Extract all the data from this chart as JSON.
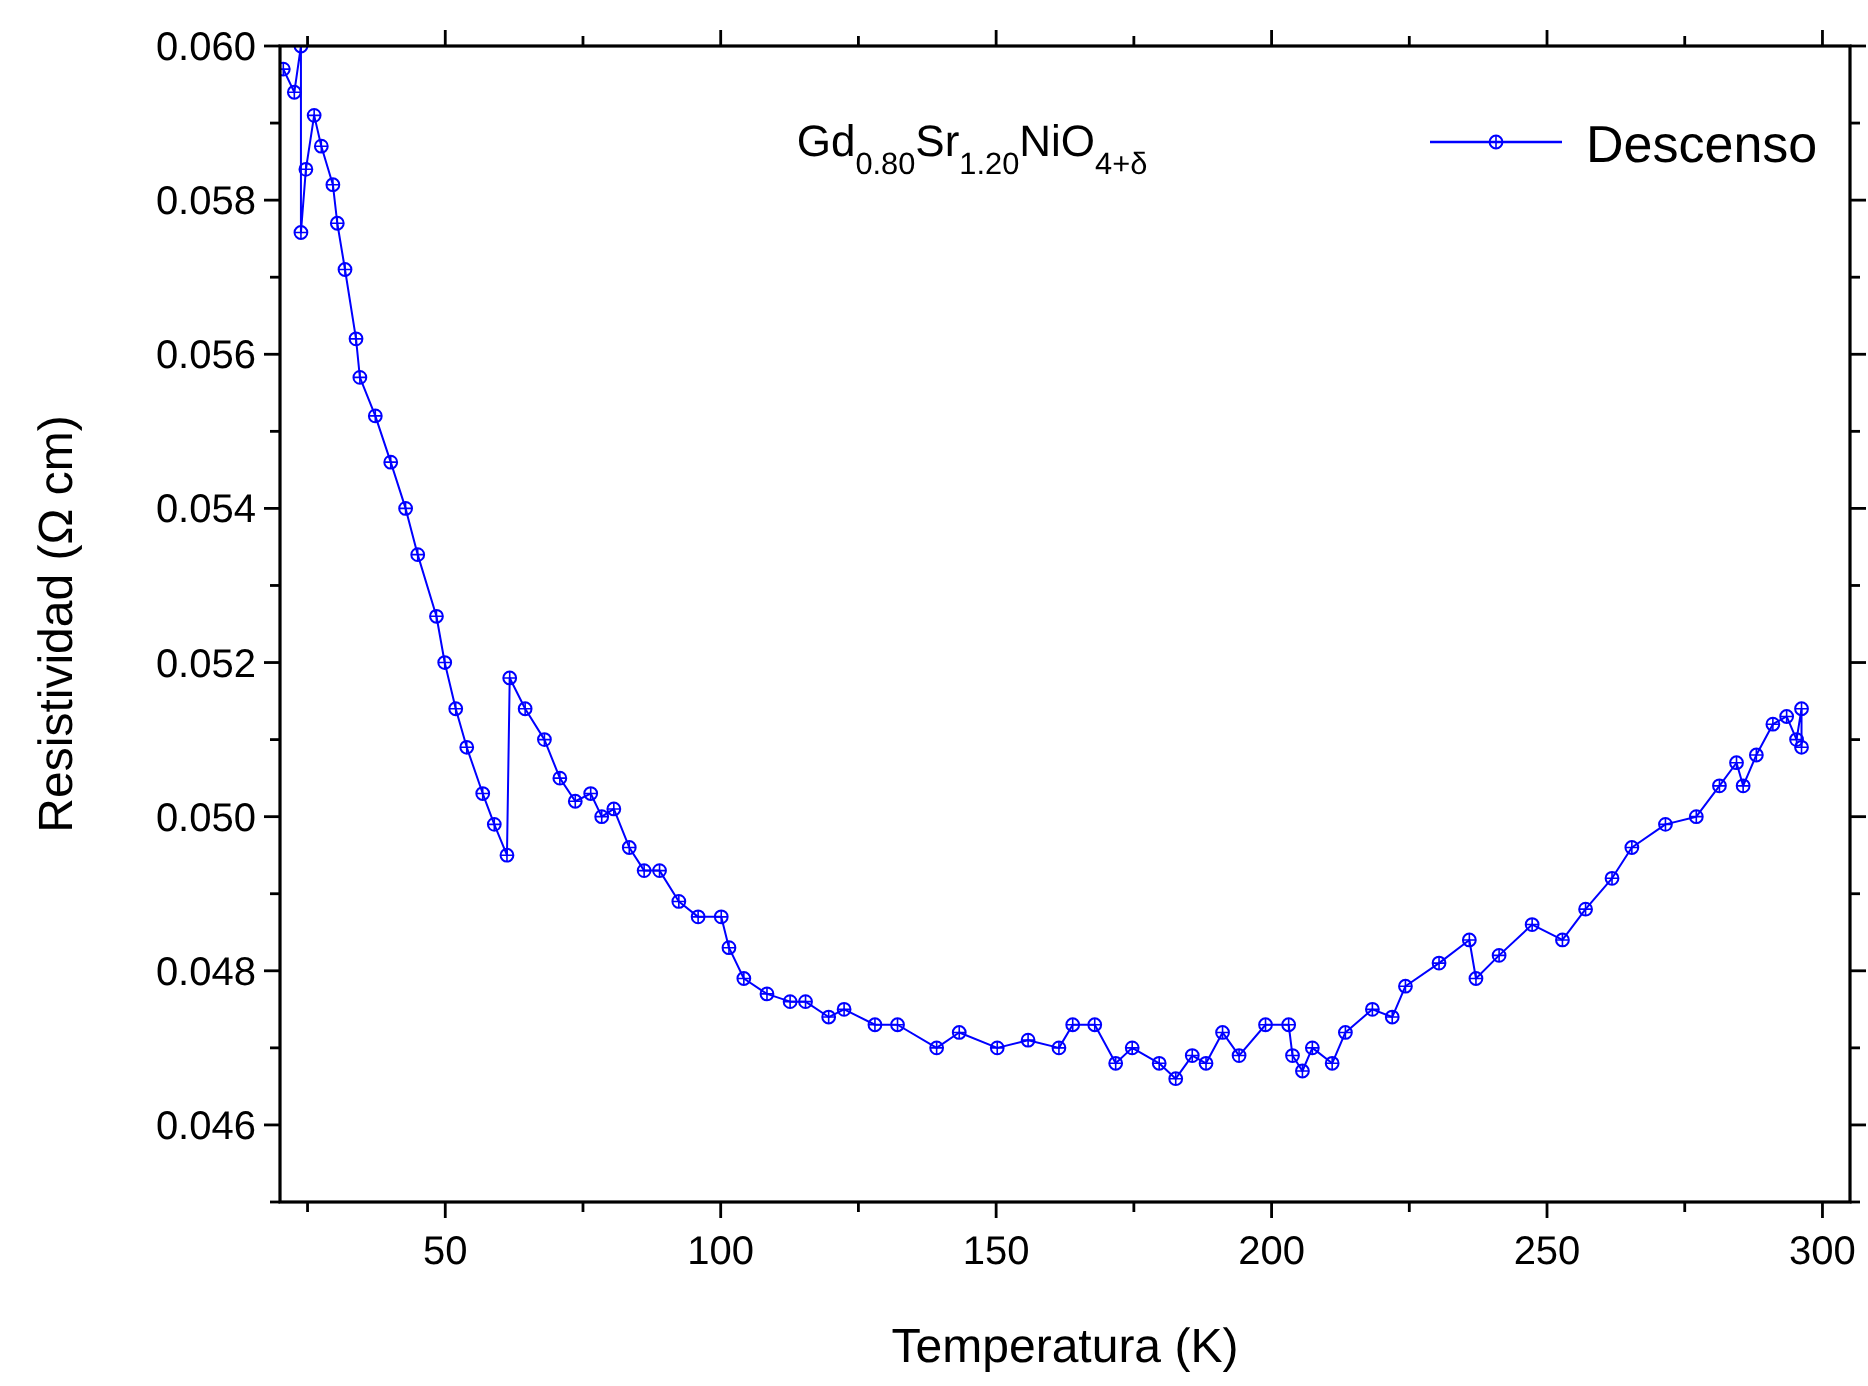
{
  "chart_data": {
    "type": "line",
    "title": "Gd$_{0.80}$Sr$_{1.20}$NiO$_{4+δ}$",
    "xlabel": "Temperatura (K)",
    "ylabel": "Resistividad (Ω cm)",
    "xlim": [
      20,
      305
    ],
    "ylim": [
      0.045,
      0.06
    ],
    "xticks": [
      {
        "value": 25,
        "label": null
      },
      50,
      {
        "value": 75,
        "label": null
      },
      100,
      {
        "value": 125,
        "label": null
      },
      150,
      {
        "value": 175,
        "label": null
      },
      200,
      {
        "value": 225,
        "label": null
      },
      250,
      {
        "value": 275,
        "label": null
      },
      300
    ],
    "yticks": [
      {
        "value": 0.045,
        "label": null
      },
      {
        "value": 0.046,
        "label": "0.046"
      },
      {
        "value": 0.047,
        "label": null
      },
      {
        "value": 0.048,
        "label": "0.048"
      },
      {
        "value": 0.049,
        "label": null
      },
      {
        "value": 0.05,
        "label": "0.050"
      },
      {
        "value": 0.051,
        "label": null
      },
      {
        "value": 0.052,
        "label": "0.052"
      },
      {
        "value": 0.053,
        "label": null
      },
      {
        "value": 0.054,
        "label": "0.054"
      },
      {
        "value": 0.055,
        "label": null
      },
      {
        "value": 0.056,
        "label": "0.056"
      },
      {
        "value": 0.057,
        "label": null
      },
      {
        "value": 0.058,
        "label": "0.058"
      },
      {
        "value": 0.059,
        "label": null
      },
      {
        "value": 0.06,
        "label": "0.060"
      }
    ],
    "legend": "top right",
    "marker": "circle",
    "line_style": "solid",
    "grid": false,
    "series": [
      {
        "name": "Descenso",
        "color": "#0000ff",
        "x": [
          20.6,
          22.6,
          23.8,
          23.8,
          24.7,
          26.2,
          27.5,
          29.6,
          30.4,
          31.8,
          33.8,
          34.5,
          37.3,
          40.1,
          42.8,
          45,
          48.4,
          49.9,
          51.9,
          53.9,
          56.8,
          58.9,
          61.2,
          61.7,
          64.5,
          68,
          70.8,
          73.6,
          76.4,
          78.4,
          80.6,
          83.4,
          86.1,
          88.9,
          92.4,
          95.9,
          100.1,
          101.5,
          104.2,
          108.4,
          112.6,
          115.4,
          119.6,
          122.4,
          128,
          132.1,
          139.2,
          143.3,
          150.2,
          155.8,
          161.4,
          163.9,
          167.9,
          171.7,
          174.7,
          179.6,
          182.6,
          185.6,
          188.1,
          191.1,
          194.1,
          198.9,
          203.1,
          203.8,
          205.6,
          207.4,
          211,
          213.4,
          218.3,
          221.9,
          224.3,
          230.4,
          235.9,
          237.1,
          241.3,
          247.3,
          252.8,
          257,
          261.8,
          265.4,
          271.5,
          277.1,
          281.3,
          284.4,
          285.6,
          288,
          291,
          293.5,
          295.3,
          296.2,
          296.2
        ],
        "values": [
          0.0597,
          0.0594,
          0.06,
          0.05758,
          0.0584,
          0.0591,
          0.0587,
          0.0582,
          0.0577,
          0.0571,
          0.0562,
          0.0557,
          0.0552,
          0.0546,
          0.054,
          0.0534,
          0.0526,
          0.052,
          0.0514,
          0.0509,
          0.0503,
          0.0499,
          0.0495,
          0.0518,
          0.0514,
          0.051,
          0.0505,
          0.0502,
          0.0503,
          0.05,
          0.0501,
          0.0496,
          0.0493,
          0.0493,
          0.0489,
          0.0487,
          0.0487,
          0.0483,
          0.0479,
          0.0477,
          0.0476,
          0.0476,
          0.0474,
          0.0475,
          0.0473,
          0.0473,
          0.047,
          0.0472,
          0.047,
          0.0471,
          0.047,
          0.0473,
          0.0473,
          0.0468,
          0.047,
          0.0468,
          0.0466,
          0.0469,
          0.0468,
          0.0472,
          0.0469,
          0.0473,
          0.0473,
          0.0469,
          0.0467,
          0.047,
          0.0468,
          0.0472,
          0.0475,
          0.0474,
          0.0478,
          0.0481,
          0.0484,
          0.0479,
          0.0482,
          0.0486,
          0.0484,
          0.0488,
          0.0492,
          0.0496,
          0.0499,
          0.05,
          0.0504,
          0.0507,
          0.0504,
          0.0508,
          0.0512,
          0.0513,
          0.051,
          0.0514,
          0.0509
        ]
      }
    ]
  }
}
